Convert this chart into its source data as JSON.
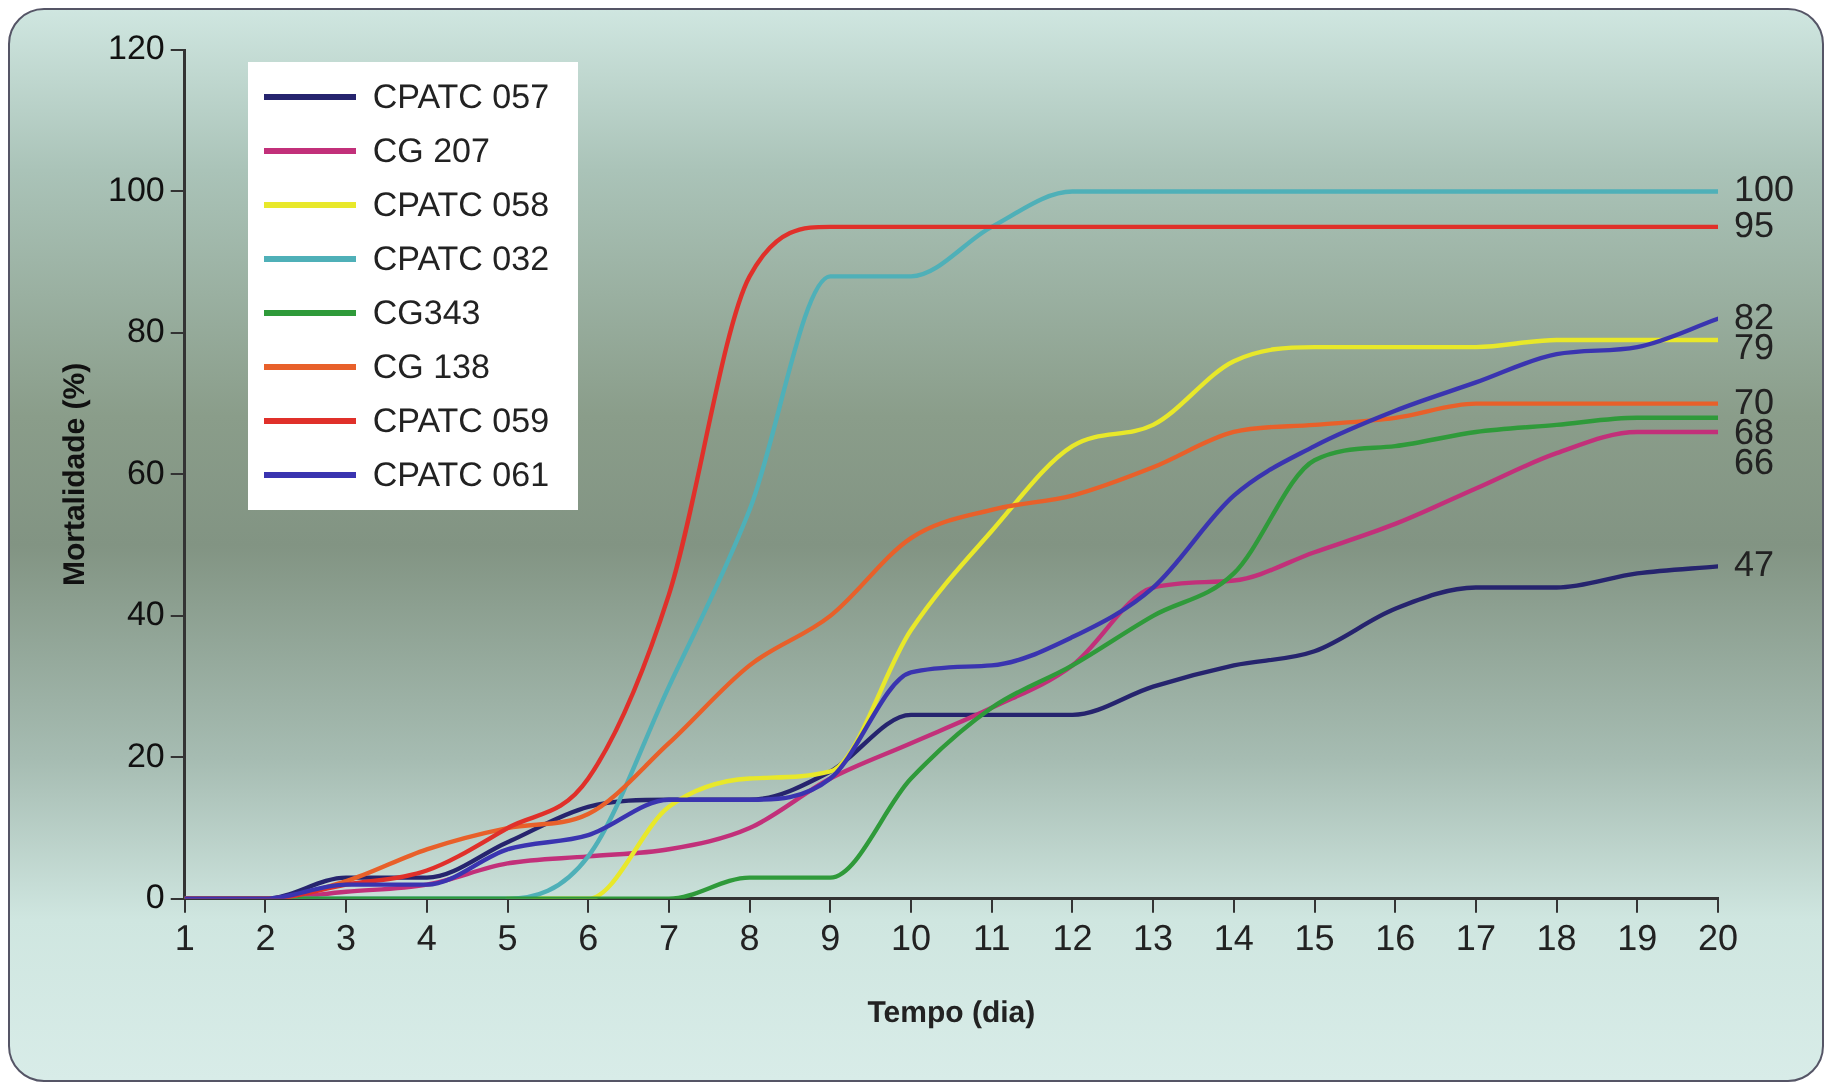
{
  "chart_data": {
    "type": "line",
    "xlabel": "Tempo (dia)",
    "ylabel": "Mortalidade (%)",
    "x": [
      1,
      2,
      3,
      4,
      5,
      6,
      7,
      8,
      9,
      10,
      11,
      12,
      13,
      14,
      15,
      16,
      17,
      18,
      19,
      20
    ],
    "xlim": [
      1,
      20
    ],
    "xticks": [
      1,
      2,
      3,
      4,
      5,
      6,
      7,
      8,
      9,
      10,
      11,
      12,
      13,
      14,
      15,
      16,
      17,
      18,
      19,
      20
    ],
    "ylim": [
      0,
      120
    ],
    "yticks": [
      0,
      20,
      40,
      60,
      80,
      100,
      120
    ],
    "grid": false,
    "legend": "top left",
    "marker": "none",
    "line_style": "solid",
    "series": [
      {
        "name": "CPATC 057",
        "color": "#26246e",
        "values": [
          0,
          0,
          3,
          3,
          8,
          13,
          14,
          14,
          18,
          26,
          26,
          26,
          30,
          33,
          35,
          41,
          44,
          44,
          46,
          47
        ],
        "value_labels": [
          null,
          null,
          null,
          null,
          null,
          null,
          null,
          null,
          null,
          null,
          null,
          null,
          null,
          null,
          null,
          null,
          null,
          null,
          null,
          "47"
        ]
      },
      {
        "name": "CG 207",
        "color": "#c2307a",
        "values": [
          0,
          0,
          1,
          2,
          5,
          6,
          7,
          10,
          17,
          22,
          27,
          33,
          44,
          45,
          49,
          53,
          58,
          63,
          66,
          66
        ],
        "value_labels": [
          null,
          null,
          null,
          null,
          null,
          null,
          null,
          null,
          null,
          null,
          null,
          null,
          null,
          null,
          null,
          null,
          null,
          null,
          null,
          "66"
        ]
      },
      {
        "name": "CPATC 058",
        "color": "#e8e82a",
        "values": [
          null,
          null,
          null,
          null,
          0,
          0,
          13,
          17,
          18,
          38,
          52,
          64,
          67,
          76,
          78,
          78,
          78,
          79,
          79,
          79
        ],
        "value_labels": [
          null,
          null,
          null,
          null,
          null,
          null,
          null,
          null,
          null,
          null,
          null,
          null,
          null,
          null,
          null,
          null,
          null,
          null,
          null,
          "79"
        ]
      },
      {
        "name": "CPATC 032",
        "color": "#4fb0b8",
        "values": [
          0,
          0,
          0,
          0,
          0,
          6,
          30,
          55,
          88,
          88,
          95,
          100,
          100,
          100,
          100,
          100,
          100,
          100,
          100,
          100
        ],
        "value_labels": [
          null,
          null,
          null,
          null,
          null,
          null,
          null,
          null,
          null,
          null,
          null,
          null,
          null,
          null,
          null,
          null,
          null,
          null,
          null,
          "100"
        ]
      },
      {
        "name": "CG343",
        "color": "#2f9a3a",
        "values": [
          0,
          0,
          0,
          0,
          0,
          0,
          0,
          3,
          3,
          17,
          27,
          33,
          40,
          46,
          62,
          64,
          66,
          67,
          68,
          68
        ],
        "value_labels": [
          null,
          null,
          null,
          null,
          null,
          null,
          null,
          null,
          null,
          null,
          null,
          null,
          null,
          null,
          null,
          null,
          null,
          null,
          null,
          "68"
        ]
      },
      {
        "name": "CG 138",
        "color": "#e8602a",
        "values": [
          0,
          0,
          2.5,
          7,
          10,
          12,
          22,
          33,
          40,
          51,
          55,
          57,
          61,
          66,
          67,
          68,
          70,
          70,
          70,
          70
        ],
        "value_labels": [
          null,
          null,
          null,
          null,
          null,
          null,
          null,
          null,
          null,
          null,
          null,
          null,
          null,
          null,
          null,
          null,
          null,
          null,
          null,
          "70"
        ]
      },
      {
        "name": "CPATC 059",
        "color": "#e0302a",
        "values": [
          0,
          0,
          2,
          4,
          10,
          17,
          43,
          88,
          95,
          95,
          95,
          95,
          95,
          95,
          95,
          95,
          95,
          95,
          95,
          95
        ],
        "value_labels": [
          null,
          null,
          null,
          null,
          null,
          null,
          null,
          null,
          null,
          null,
          null,
          null,
          null,
          null,
          null,
          null,
          null,
          null,
          null,
          "95"
        ]
      },
      {
        "name": "CPATC 061",
        "color": "#3a34b0",
        "values": [
          0,
          0,
          2,
          2,
          7,
          9,
          14,
          14,
          17,
          32,
          33,
          37,
          44,
          57,
          64,
          69,
          73,
          77,
          78,
          82
        ],
        "value_labels": [
          null,
          null,
          null,
          null,
          null,
          null,
          null,
          null,
          null,
          null,
          null,
          null,
          null,
          null,
          null,
          null,
          null,
          null,
          null,
          "82"
        ]
      }
    ]
  }
}
